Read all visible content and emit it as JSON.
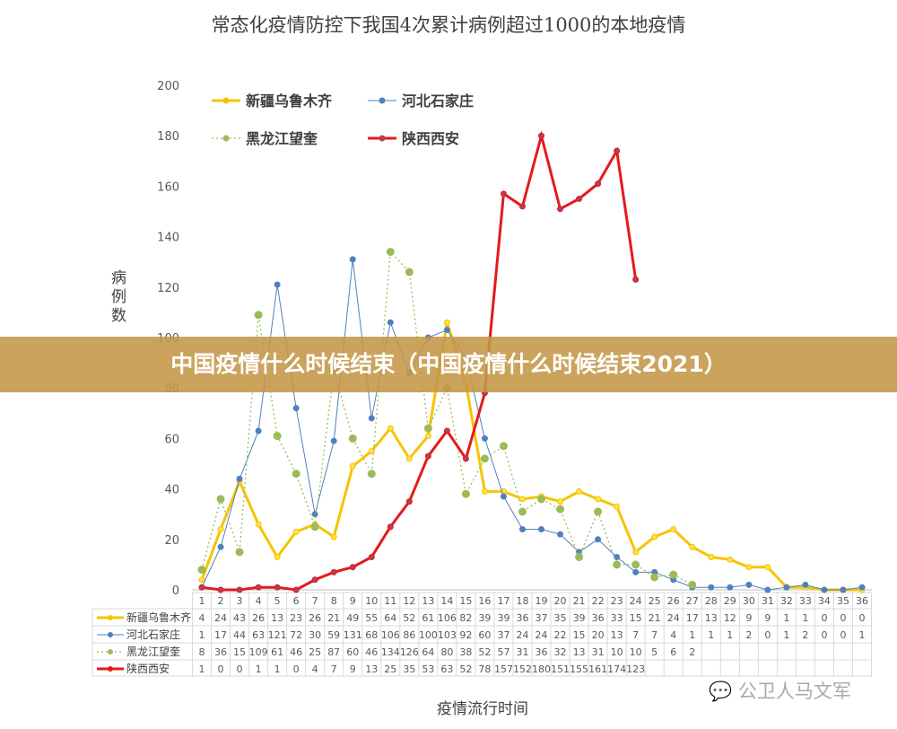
{
  "chart_data": {
    "type": "line",
    "title": "常态化疫情防控下我国4次累计病例超过1000的本地疫情",
    "xlabel": "疫情流行时间",
    "ylabel": "病例数",
    "ylim": [
      0,
      200
    ],
    "yticks": [
      0,
      20,
      40,
      60,
      80,
      100,
      120,
      140,
      160,
      180,
      200
    ],
    "grid": false,
    "legend": "top-left",
    "x": [
      1,
      2,
      3,
      4,
      5,
      6,
      7,
      8,
      9,
      10,
      11,
      12,
      13,
      14,
      15,
      16,
      17,
      18,
      19,
      20,
      21,
      22,
      23,
      24,
      25,
      26,
      27,
      28,
      29,
      30,
      31,
      32,
      33,
      34,
      35,
      36
    ],
    "series": [
      {
        "name": "新疆乌鲁木齐",
        "color": "#f5c400",
        "style": "solid",
        "values": [
          4,
          24,
          43,
          26,
          13,
          23,
          26,
          21,
          49,
          55,
          64,
          52,
          61,
          106,
          82,
          39,
          39,
          36,
          37,
          35,
          39,
          36,
          33,
          15,
          21,
          24,
          17,
          13,
          12,
          9,
          9,
          1,
          1,
          0,
          0,
          0
        ]
      },
      {
        "name": "河北石家庄",
        "color": "#4f81bd",
        "style": "thin",
        "values": [
          1,
          17,
          44,
          63,
          121,
          72,
          30,
          59,
          131,
          68,
          106,
          86,
          100,
          103,
          92,
          60,
          37,
          24,
          24,
          22,
          15,
          20,
          13,
          7,
          7,
          4,
          1,
          1,
          1,
          2,
          0,
          1,
          2,
          0,
          0,
          1
        ]
      },
      {
        "name": "黑龙江望奎",
        "color": "#9bbb59",
        "style": "dotted",
        "values": [
          8,
          36,
          15,
          109,
          61,
          46,
          25,
          87,
          60,
          46,
          134,
          126,
          64,
          80,
          38,
          52,
          57,
          31,
          36,
          32,
          13,
          31,
          10,
          10,
          5,
          6,
          2,
          null,
          null,
          null,
          null,
          null,
          null,
          null,
          null,
          null
        ]
      },
      {
        "name": "陕西西安",
        "color": "#e31a1c",
        "style": "thick",
        "values": [
          1,
          0,
          0,
          1,
          1,
          0,
          4,
          7,
          9,
          13,
          25,
          35,
          53,
          63,
          52,
          78,
          157,
          152,
          180,
          151,
          155,
          161,
          174,
          123,
          null,
          null,
          null,
          null,
          null,
          null,
          null,
          null,
          null,
          null,
          null,
          null
        ]
      }
    ]
  },
  "banner": "中国疫情什么时候结束（中国疫情什么时候结束2021）",
  "watermark": "公卫人马文军"
}
